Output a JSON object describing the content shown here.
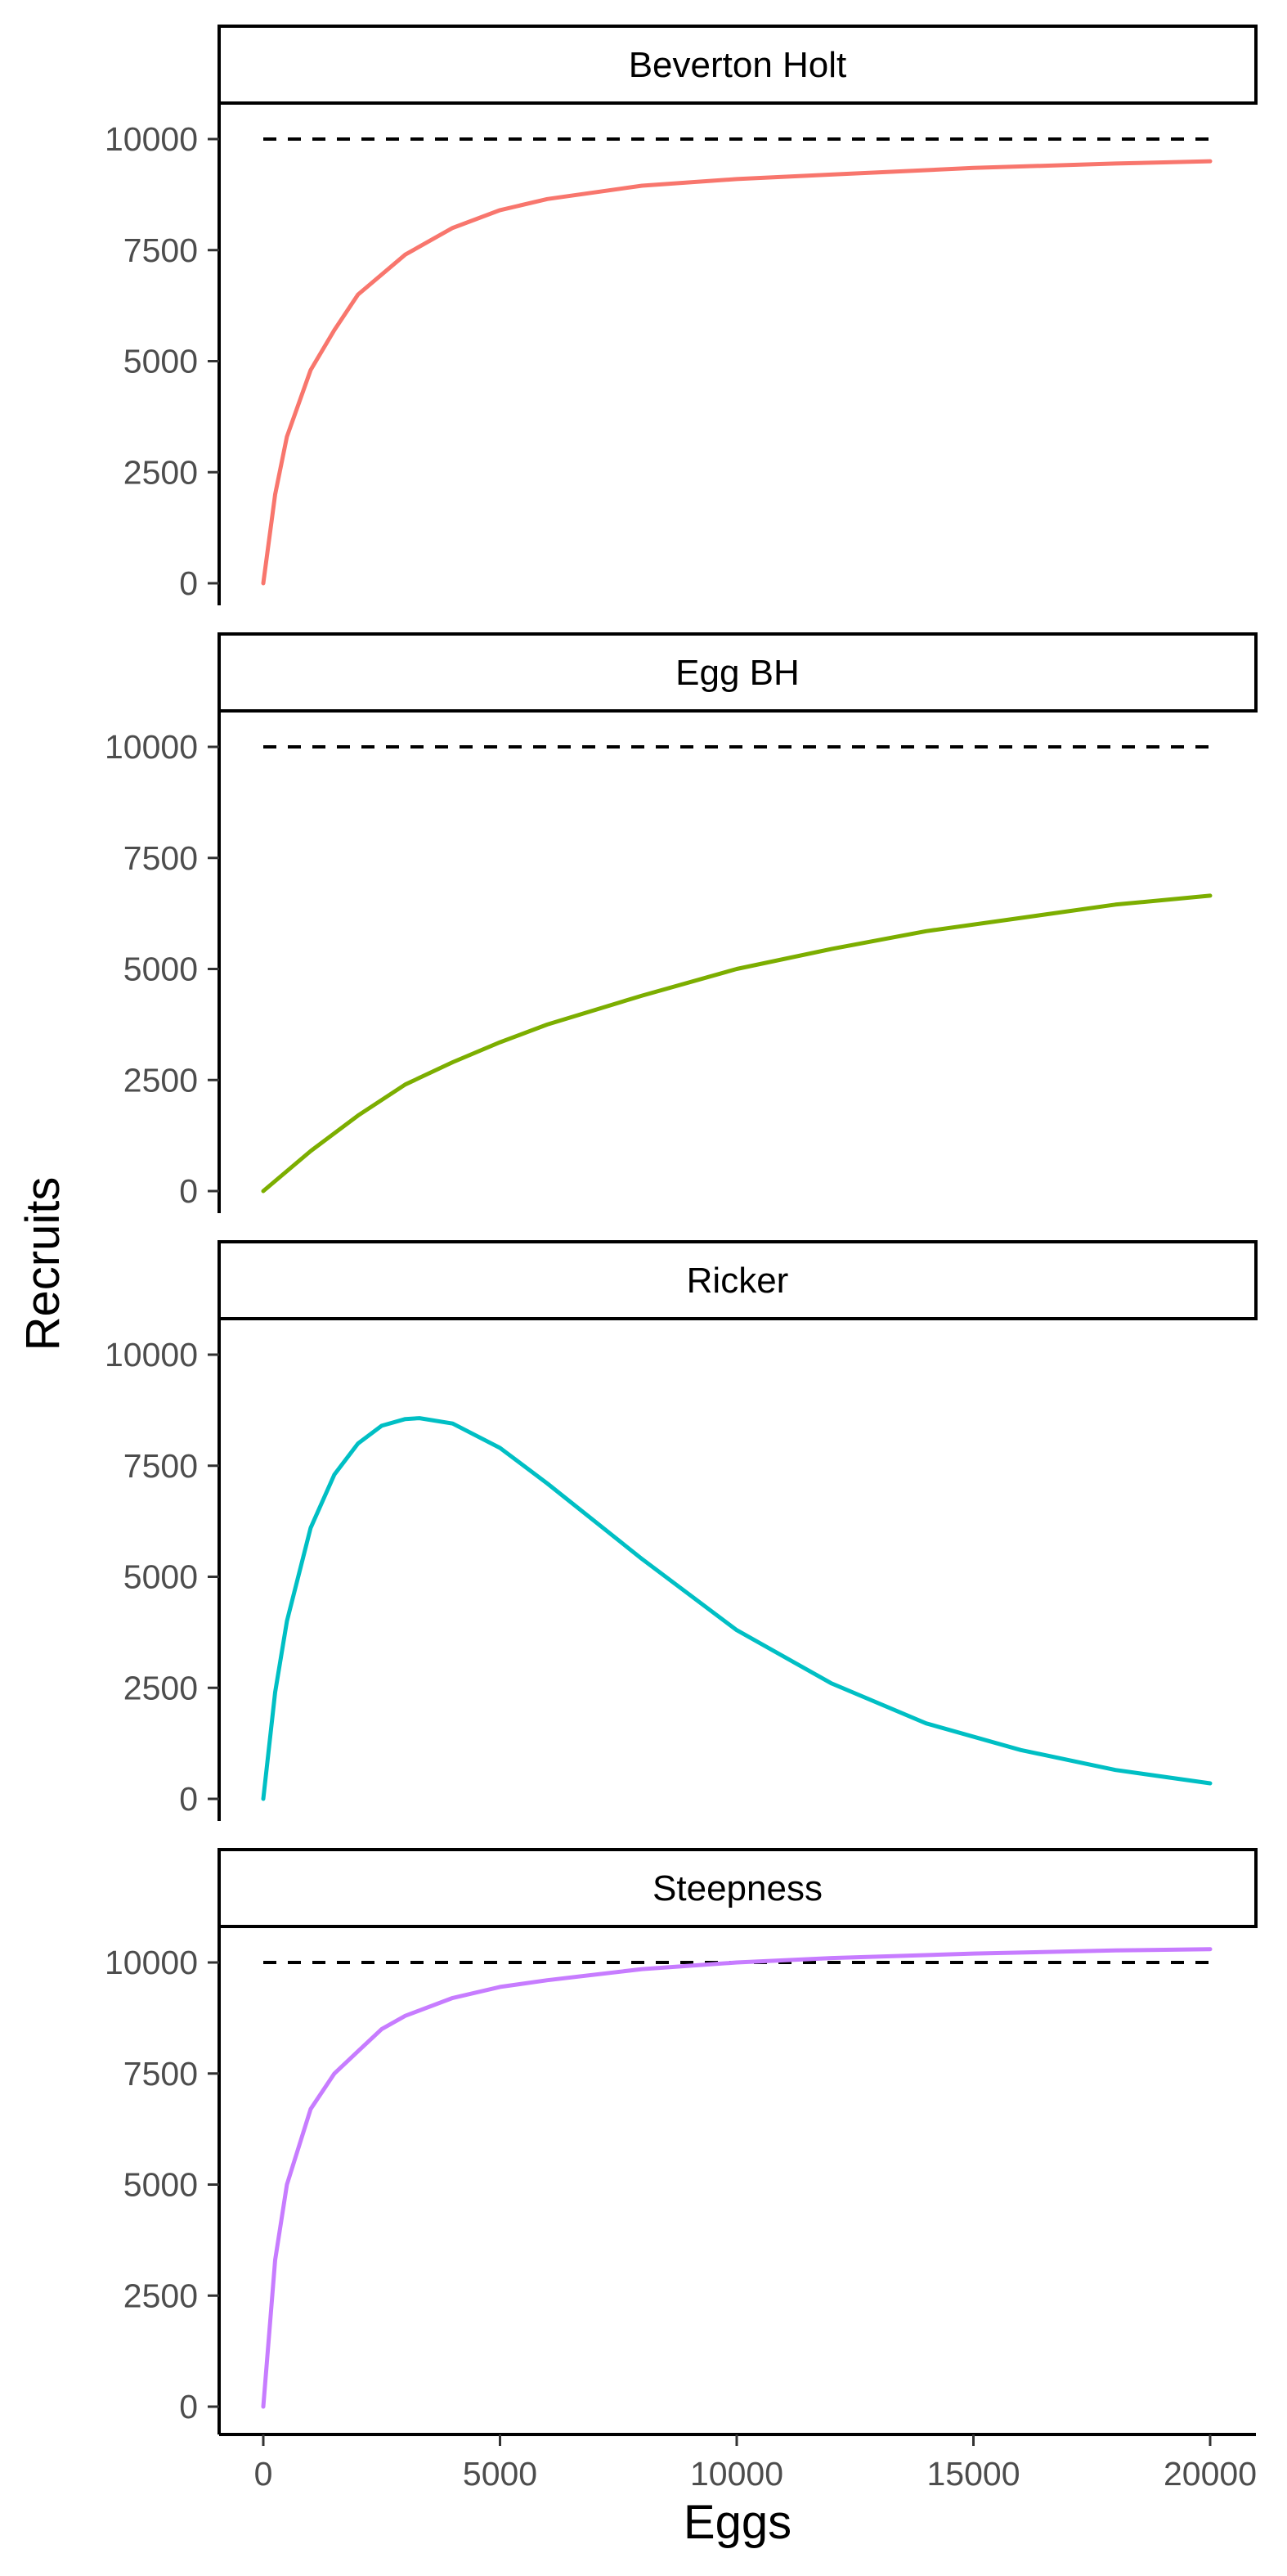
{
  "chart_data": {
    "type": "line",
    "facet_by": "model",
    "xlabel": "Eggs",
    "ylabel": "Recruits",
    "xlim": [
      0,
      20000
    ],
    "ylim": [
      0,
      10000
    ],
    "x_ticks": [
      0,
      5000,
      10000,
      15000,
      20000
    ],
    "y_ticks": [
      0,
      2500,
      5000,
      7500,
      10000
    ],
    "grid": false,
    "legend": "none",
    "reference_line": {
      "y": 10000,
      "style": "dashed",
      "color": "#000000"
    },
    "panels": [
      {
        "title": "Beverton Holt",
        "color": "#F8766D",
        "show_reference": true,
        "x": [
          0,
          250,
          500,
          1000,
          1500,
          2000,
          3000,
          4000,
          5000,
          6000,
          8000,
          10000,
          12000,
          15000,
          18000,
          20000
        ],
        "y": [
          0,
          2000,
          3300,
          4800,
          5700,
          6500,
          7400,
          8000,
          8400,
          8650,
          8950,
          9100,
          9200,
          9350,
          9450,
          9500
        ]
      },
      {
        "title": "Egg BH",
        "color": "#7CAE00",
        "show_reference": true,
        "x": [
          0,
          1000,
          2000,
          3000,
          4000,
          5000,
          6000,
          8000,
          10000,
          12000,
          14000,
          16000,
          18000,
          20000
        ],
        "y": [
          0,
          900,
          1700,
          2400,
          2900,
          3350,
          3750,
          4400,
          5000,
          5450,
          5850,
          6150,
          6450,
          6650
        ]
      },
      {
        "title": "Ricker",
        "color": "#00BFC4",
        "show_reference": false,
        "x": [
          0,
          250,
          500,
          1000,
          1500,
          2000,
          2500,
          3000,
          3300,
          4000,
          5000,
          6000,
          8000,
          10000,
          12000,
          14000,
          16000,
          18000,
          20000
        ],
        "y": [
          0,
          2400,
          4000,
          6100,
          7300,
          8000,
          8400,
          8550,
          8570,
          8450,
          7900,
          7100,
          5400,
          3800,
          2600,
          1700,
          1100,
          650,
          350
        ]
      },
      {
        "title": "Steepness",
        "color": "#C77CFF",
        "show_reference": true,
        "x": [
          0,
          250,
          500,
          1000,
          1500,
          2000,
          2500,
          3000,
          4000,
          5000,
          6000,
          8000,
          10000,
          12000,
          15000,
          18000,
          20000
        ],
        "y": [
          0,
          3300,
          5000,
          6700,
          7500,
          8000,
          8500,
          8800,
          9200,
          9450,
          9600,
          9850,
          10000,
          10100,
          10200,
          10270,
          10300
        ]
      }
    ]
  }
}
